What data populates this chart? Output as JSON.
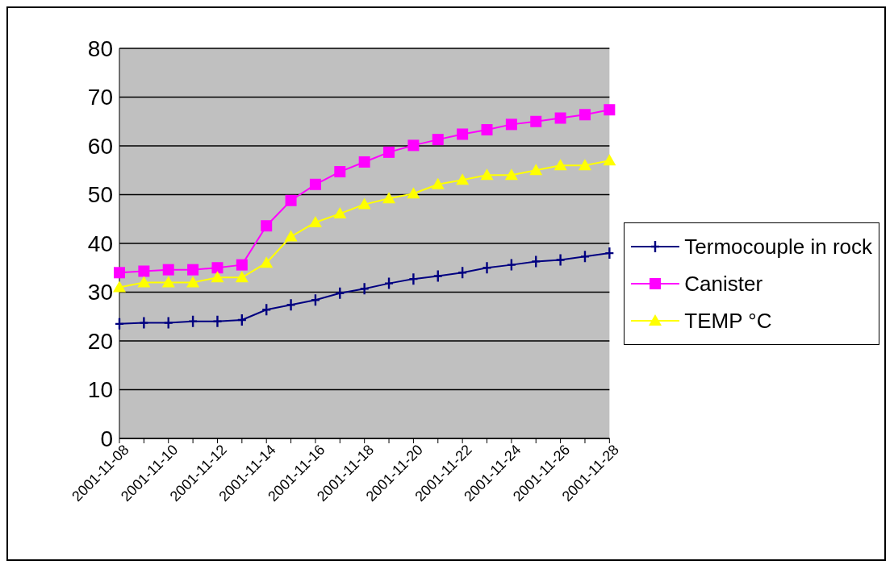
{
  "chart_data": {
    "type": "line",
    "categories": [
      "2001-11-08",
      null,
      "2001-11-10",
      null,
      "2001-11-12",
      null,
      "2001-11-14",
      null,
      "2001-11-16",
      null,
      "2001-11-18",
      null,
      "2001-11-20",
      null,
      "2001-11-22",
      null,
      "2001-11-24",
      null,
      "2001-11-26",
      null,
      "2001-11-28"
    ],
    "series": [
      {
        "name": "Termocouple in rock",
        "color": "#000080",
        "marker": "cross",
        "values": [
          23.5,
          23.7,
          23.7,
          24,
          24,
          24.3,
          26.4,
          27.4,
          28.4,
          29.8,
          30.7,
          31.8,
          32.7,
          33.3,
          34,
          35,
          35.6,
          36.3,
          36.6,
          37.3,
          38
        ]
      },
      {
        "name": "Canister",
        "color": "#ff00ff",
        "marker": "square",
        "values": [
          34,
          34.3,
          34.6,
          34.6,
          35,
          35.6,
          43.6,
          48.8,
          52.1,
          54.7,
          56.7,
          58.7,
          60.1,
          61.3,
          62.4,
          63.3,
          64.4,
          65,
          65.7,
          66.4,
          67.4
        ]
      },
      {
        "name": "TEMP °C",
        "color": "#ffff00",
        "marker": "triangle",
        "values": [
          31,
          32,
          32,
          32,
          33,
          33,
          36,
          41.4,
          44.3,
          46.1,
          48,
          49.2,
          50.2,
          52.1,
          53,
          54,
          54,
          55,
          56,
          56,
          57
        ]
      }
    ],
    "ylim": [
      0,
      80
    ],
    "yticks": [
      0,
      10,
      20,
      30,
      40,
      50,
      60,
      70,
      80
    ],
    "grid": "y",
    "legend": "right",
    "line_style": "solid"
  }
}
